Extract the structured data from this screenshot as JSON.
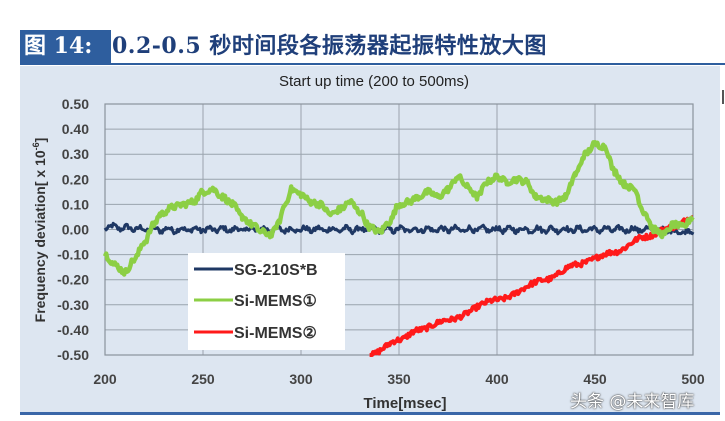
{
  "figure": {
    "label": "图 14:",
    "title": "0.2-0.5 秒时间段各振荡器起振特性放大图"
  },
  "watermark": "头条 @未来智库",
  "chart_data": {
    "type": "line",
    "title": "Start up time (200 to 500ms)",
    "xlabel": "Time[msec]",
    "ylabel": "Frequency deviation[ x 10^-6]",
    "ylabel_display": "Frequency deviation[ x 10",
    "ylabel_exp": "-6",
    "ylabel_close": "]",
    "xlim": [
      200,
      500
    ],
    "ylim": [
      -0.5,
      0.5
    ],
    "x_ticks": [
      200,
      250,
      300,
      350,
      400,
      450,
      500
    ],
    "x_tick_labels": [
      "200",
      "250",
      "300",
      "350",
      "400",
      "450",
      "500"
    ],
    "y_ticks": [
      0.5,
      0.4,
      0.3,
      0.2,
      0.1,
      0.0,
      -0.1,
      -0.2,
      -0.3,
      -0.4,
      -0.5
    ],
    "y_tick_labels": [
      "0.50",
      "0.40",
      "0.30",
      "0.20",
      "0.10",
      "0.00",
      "-0.10",
      "-0.20",
      "-0.30",
      "-0.40",
      "-0.50"
    ],
    "grid": true,
    "legend_position": "lower-left inside plot",
    "series": [
      {
        "name": "SG-210S*B",
        "legend_label": "SG-210S*B",
        "color": "#1f3864",
        "noise": 0.012,
        "points": [
          [
            200,
            0.01
          ],
          [
            225,
            0.0
          ],
          [
            250,
            0.0
          ],
          [
            275,
            0.0
          ],
          [
            300,
            0.0
          ],
          [
            325,
            0.0
          ],
          [
            350,
            0.0
          ],
          [
            375,
            0.0
          ],
          [
            400,
            0.0
          ],
          [
            425,
            0.0
          ],
          [
            450,
            0.0
          ],
          [
            475,
            0.0
          ],
          [
            500,
            -0.01
          ]
        ]
      },
      {
        "name": "Si-MEMS①",
        "legend_label": "Si-MEMS①",
        "color": "#8ccf45",
        "noise": 0.012,
        "points": [
          [
            200,
            -0.1
          ],
          [
            205,
            -0.14
          ],
          [
            210,
            -0.17
          ],
          [
            215,
            -0.12
          ],
          [
            220,
            -0.05
          ],
          [
            225,
            0.02
          ],
          [
            228,
            0.06
          ],
          [
            235,
            0.09
          ],
          [
            240,
            0.1
          ],
          [
            245,
            0.11
          ],
          [
            250,
            0.15
          ],
          [
            255,
            0.16
          ],
          [
            260,
            0.13
          ],
          [
            265,
            0.1
          ],
          [
            270,
            0.05
          ],
          [
            275,
            0.02
          ],
          [
            280,
            -0.01
          ],
          [
            285,
            -0.02
          ],
          [
            288,
            0.02
          ],
          [
            292,
            0.1
          ],
          [
            295,
            0.16
          ],
          [
            300,
            0.14
          ],
          [
            305,
            0.11
          ],
          [
            310,
            0.1
          ],
          [
            315,
            0.06
          ],
          [
            320,
            0.08
          ],
          [
            325,
            0.11
          ],
          [
            330,
            0.07
          ],
          [
            335,
            0.01
          ],
          [
            340,
            -0.01
          ],
          [
            345,
            0.03
          ],
          [
            350,
            0.1
          ],
          [
            355,
            0.11
          ],
          [
            360,
            0.13
          ],
          [
            365,
            0.15
          ],
          [
            370,
            0.13
          ],
          [
            375,
            0.16
          ],
          [
            380,
            0.21
          ],
          [
            385,
            0.17
          ],
          [
            390,
            0.13
          ],
          [
            395,
            0.19
          ],
          [
            400,
            0.21
          ],
          [
            405,
            0.19
          ],
          [
            410,
            0.2
          ],
          [
            415,
            0.19
          ],
          [
            420,
            0.13
          ],
          [
            425,
            0.12
          ],
          [
            430,
            0.11
          ],
          [
            435,
            0.13
          ],
          [
            440,
            0.22
          ],
          [
            445,
            0.3
          ],
          [
            450,
            0.34
          ],
          [
            455,
            0.33
          ],
          [
            460,
            0.23
          ],
          [
            465,
            0.18
          ],
          [
            470,
            0.16
          ],
          [
            475,
            0.07
          ],
          [
            480,
            0.0
          ],
          [
            485,
            -0.02
          ],
          [
            490,
            0.02
          ],
          [
            495,
            0.01
          ],
          [
            500,
            0.05
          ]
        ]
      },
      {
        "name": "Si-MEMS②",
        "legend_label": "Si-MEMS②",
        "color": "#ff1a1a",
        "noise": 0.01,
        "points": [
          [
            335,
            -0.5
          ],
          [
            350,
            -0.44
          ],
          [
            360,
            -0.4
          ],
          [
            375,
            -0.36
          ],
          [
            400,
            -0.28
          ],
          [
            425,
            -0.2
          ],
          [
            440,
            -0.14
          ],
          [
            460,
            -0.09
          ],
          [
            475,
            -0.03
          ],
          [
            490,
            0.01
          ],
          [
            500,
            0.05
          ]
        ]
      }
    ]
  }
}
